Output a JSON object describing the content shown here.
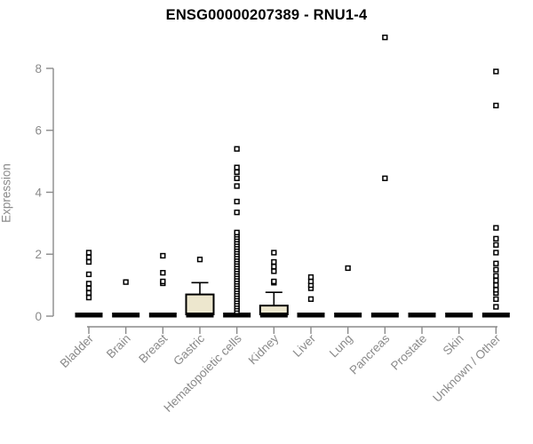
{
  "chart_data": {
    "type": "boxplot",
    "title": "ENSG00000207389 - RNU1-4",
    "ylabel": "Expression",
    "xlabel": "",
    "ylim": [
      0,
      9.2
    ],
    "yticks": [
      0,
      2,
      4,
      6,
      8
    ],
    "grid": false,
    "legend": "none",
    "categories": [
      "Bladder",
      "Brain",
      "Breast",
      "Gastric",
      "Hematopoietic cells",
      "Kidney",
      "Liver",
      "Lung",
      "Pancreas",
      "Prostate",
      "Skin",
      "Unknown / Other"
    ],
    "boxes": [
      {
        "category": "Bladder",
        "q1": 0,
        "median": 0,
        "q3": 0,
        "whisker_low": 0,
        "whisker_high": 0,
        "outliers": [
          2.05,
          1.9,
          1.75,
          1.35,
          1.05,
          0.9,
          0.75,
          0.6
        ]
      },
      {
        "category": "Brain",
        "q1": 0,
        "median": 0,
        "q3": 0,
        "whisker_low": 0,
        "whisker_high": 0,
        "outliers": [
          1.1
        ]
      },
      {
        "category": "Breast",
        "q1": 0,
        "median": 0,
        "q3": 0,
        "whisker_low": 0,
        "whisker_high": 0,
        "outliers": [
          1.95,
          1.4,
          1.12,
          1.06
        ]
      },
      {
        "category": "Gastric",
        "q1": 0.02,
        "median": 0.05,
        "q3": 0.7,
        "whisker_low": 0,
        "whisker_high": 1.08,
        "outliers": [
          1.83
        ]
      },
      {
        "category": "Hematopoietic cells",
        "q1": 0,
        "median": 0,
        "q3": 0,
        "whisker_low": 0,
        "whisker_high": 0,
        "outliers": [
          5.4,
          4.8,
          4.65,
          4.45,
          4.2,
          3.7,
          3.35,
          2.7,
          2.63,
          2.55,
          2.47,
          2.39,
          2.31,
          2.23,
          2.15,
          2.07,
          1.99,
          1.91,
          1.83,
          1.75,
          1.67,
          1.59,
          1.51,
          1.43,
          1.35,
          1.27,
          1.19,
          1.11,
          1.03,
          0.95,
          0.87,
          0.79,
          0.71,
          0.63,
          0.55,
          0.47,
          0.39,
          0.31,
          0.23,
          0.15
        ]
      },
      {
        "category": "Kidney",
        "q1": 0,
        "median": 0.03,
        "q3": 0.34,
        "whisker_low": 0,
        "whisker_high": 0.77,
        "outliers": [
          2.05,
          1.75,
          1.6,
          1.45,
          1.12,
          1.08
        ]
      },
      {
        "category": "Liver",
        "q1": 0,
        "median": 0,
        "q3": 0,
        "whisker_low": 0,
        "whisker_high": 0,
        "outliers": [
          1.26,
          1.12,
          1.0,
          0.9,
          0.55
        ]
      },
      {
        "category": "Lung",
        "q1": 0,
        "median": 0,
        "q3": 0,
        "whisker_low": 0,
        "whisker_high": 0,
        "outliers": [
          1.55
        ]
      },
      {
        "category": "Pancreas",
        "q1": 0,
        "median": 0,
        "q3": 0,
        "whisker_low": 0,
        "whisker_high": 0,
        "outliers": [
          9.0,
          4.45
        ]
      },
      {
        "category": "Prostate",
        "q1": 0,
        "median": 0,
        "q3": 0,
        "whisker_low": 0,
        "whisker_high": 0,
        "outliers": []
      },
      {
        "category": "Skin",
        "q1": 0,
        "median": 0,
        "q3": 0,
        "whisker_low": 0,
        "whisker_high": 0,
        "outliers": []
      },
      {
        "category": "Unknown / Other",
        "q1": 0,
        "median": 0,
        "q3": 0,
        "whisker_low": 0,
        "whisker_high": 0,
        "outliers": [
          7.9,
          6.8,
          2.85,
          2.5,
          2.3,
          2.05,
          1.7,
          1.5,
          1.3,
          1.15,
          1.0,
          0.85,
          0.75,
          0.55,
          0.3
        ]
      }
    ],
    "colors": {
      "box_fill": "#ede7ce",
      "box_border": "#000000",
      "median_bar": "#000000",
      "outlier_stroke": "#000000",
      "outlier_fill": "#ffffff",
      "axis": "#8a8a8a",
      "title": "#000000",
      "background": "#ffffff"
    }
  }
}
